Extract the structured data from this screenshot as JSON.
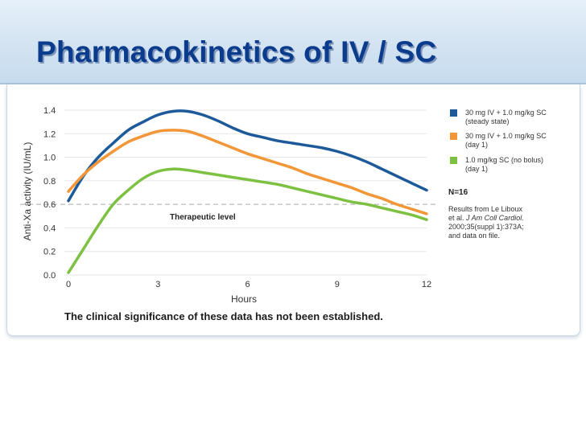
{
  "slide": {
    "title": "Pharmacokinetics of IV / SC",
    "footnote": "The clinical significance of these data has not been established."
  },
  "chart_data": {
    "type": "line",
    "xlabel": "Hours",
    "ylabel": "Anti-Xa activity (IU/mL)",
    "xlim": [
      0,
      12
    ],
    "ylim": [
      0,
      1.4
    ],
    "x_ticks": [
      "0",
      "3",
      "6",
      "9",
      "12"
    ],
    "y_ticks": [
      "0.0",
      "0.2",
      "0.4",
      "0.6",
      "0.8",
      "1.0",
      "1.2",
      "1.4"
    ],
    "threshold": {
      "value": 0.6,
      "label": "Therapeutic level",
      "color": "#aaaaaa"
    },
    "series": [
      {
        "name": "30 mg IV + 1.0 mg/kg SC (steady state)",
        "legend_lines": [
          "30 mg IV + 1.0 mg/kg SC",
          "(steady state)"
        ],
        "color": "#1d5a9a",
        "x": [
          0,
          0.5,
          1,
          1.5,
          2,
          2.5,
          3,
          3.5,
          4,
          4.5,
          5,
          5.5,
          6,
          6.5,
          7,
          7.5,
          8,
          8.5,
          9,
          9.5,
          10,
          10.5,
          11,
          11.5,
          12
        ],
        "y": [
          0.63,
          0.84,
          1.0,
          1.12,
          1.23,
          1.3,
          1.36,
          1.39,
          1.39,
          1.36,
          1.31,
          1.25,
          1.2,
          1.17,
          1.14,
          1.12,
          1.1,
          1.08,
          1.05,
          1.01,
          0.96,
          0.9,
          0.84,
          0.78,
          0.72
        ]
      },
      {
        "name": "30 mg IV + 1.0 mg/kg SC (day 1)",
        "legend_lines": [
          "30 mg IV + 1.0 mg/kg SC",
          "(day 1)"
        ],
        "color": "#f29637",
        "x": [
          0,
          0.5,
          1,
          1.5,
          2,
          2.5,
          3,
          3.5,
          4,
          4.5,
          5,
          5.5,
          6,
          6.5,
          7,
          7.5,
          8,
          8.5,
          9,
          9.5,
          10,
          10.5,
          11,
          11.5,
          12
        ],
        "y": [
          0.71,
          0.85,
          0.96,
          1.05,
          1.13,
          1.18,
          1.22,
          1.23,
          1.22,
          1.18,
          1.13,
          1.08,
          1.03,
          0.99,
          0.95,
          0.91,
          0.86,
          0.82,
          0.78,
          0.74,
          0.69,
          0.65,
          0.6,
          0.56,
          0.52
        ]
      },
      {
        "name": "1.0 mg/kg SC (no bolus) (day 1)",
        "legend_lines": [
          "1.0 mg/kg SC (no bolus)",
          "(day 1)"
        ],
        "color": "#7dc142",
        "x": [
          0,
          0.5,
          1,
          1.5,
          2,
          2.5,
          3,
          3.5,
          4,
          4.5,
          5,
          5.5,
          6,
          6.5,
          7,
          7.5,
          8,
          8.5,
          9,
          9.5,
          10,
          10.5,
          11,
          11.5,
          12
        ],
        "y": [
          0.02,
          0.22,
          0.42,
          0.6,
          0.72,
          0.82,
          0.88,
          0.9,
          0.89,
          0.87,
          0.85,
          0.83,
          0.81,
          0.79,
          0.77,
          0.74,
          0.71,
          0.68,
          0.65,
          0.62,
          0.6,
          0.57,
          0.54,
          0.51,
          0.47
        ]
      }
    ],
    "annotations": {
      "n_label": "N=16",
      "source_lines": [
        "Results from Le Liboux",
        "et al. ",
        "J Am Coll Cardiol.",
        "2000;35(suppl 1):373A;",
        "and data on file."
      ]
    }
  }
}
